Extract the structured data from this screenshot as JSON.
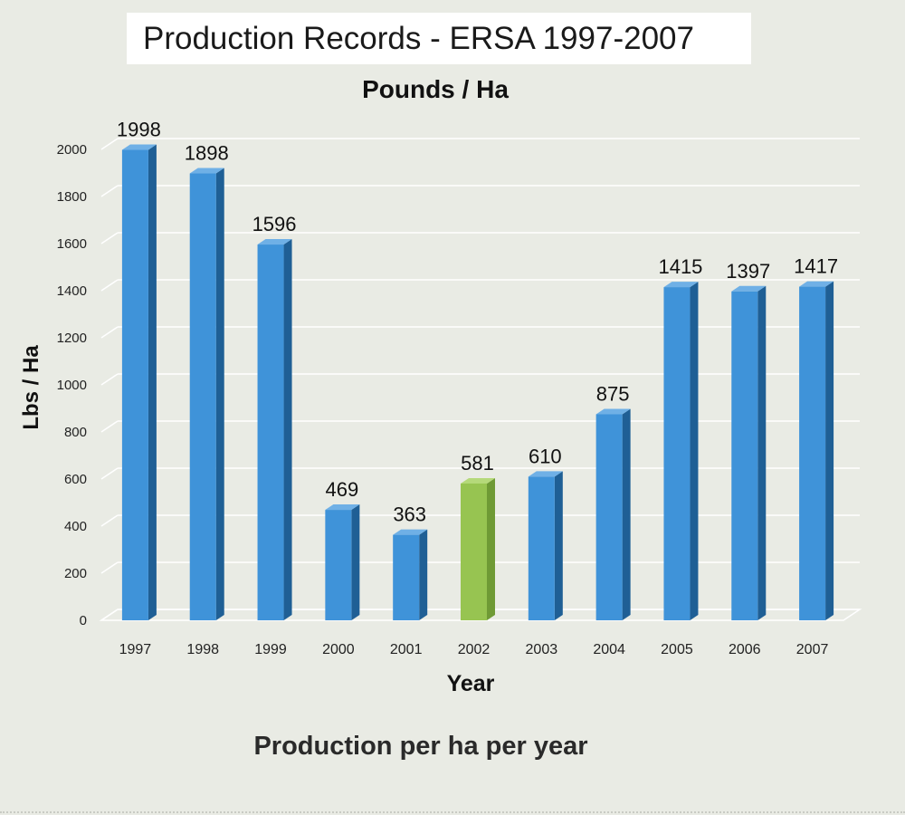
{
  "header": {
    "title": "Production Records - ERSA 1997-2007"
  },
  "caption": "Production per ha per year",
  "colors": {
    "bar": "#3a8fd6",
    "highlight": "#8fc04a",
    "background": "#e9ebe4"
  },
  "chart_data": {
    "type": "bar",
    "title": "Pounds / Ha",
    "xlabel": "Year",
    "ylabel": "Lbs / Ha",
    "categories": [
      "1997",
      "1998",
      "1999",
      "2000",
      "2001",
      "2002",
      "2003",
      "2004",
      "2005",
      "2006",
      "2007"
    ],
    "values": [
      1998,
      1898,
      1596,
      469,
      363,
      581,
      610,
      875,
      1415,
      1397,
      1417
    ],
    "highlight_category": "2002",
    "ylim": [
      0,
      2000
    ],
    "yticks": [
      0,
      200,
      400,
      600,
      800,
      1000,
      1200,
      1400,
      1600,
      1800,
      2000
    ],
    "grid": true,
    "legend": "none",
    "data_labels": true
  }
}
